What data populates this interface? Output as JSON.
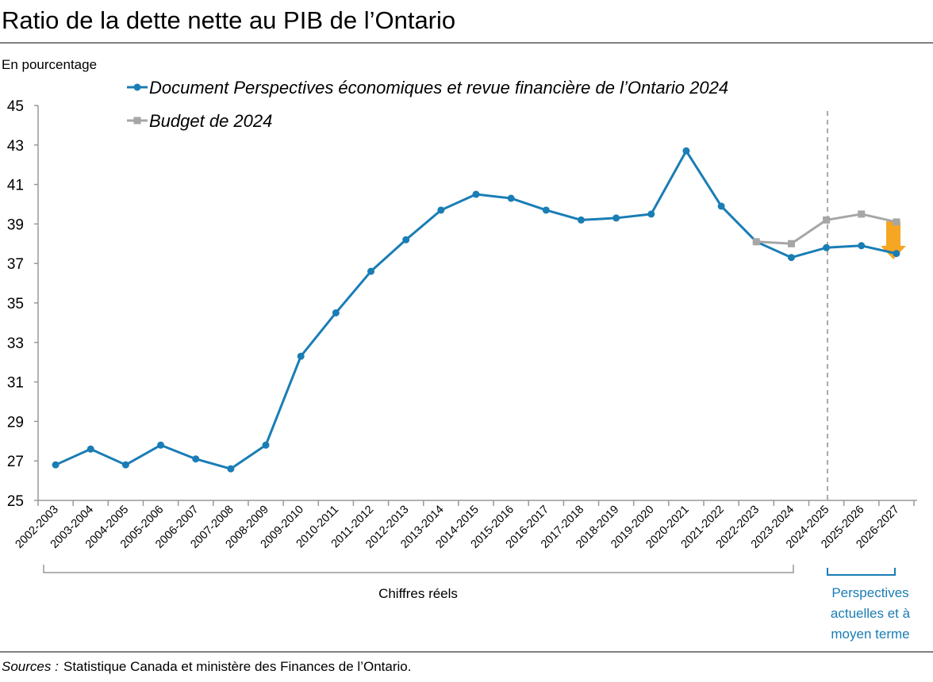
{
  "chart_data": {
    "type": "line",
    "title": "Ratio de la dette nette au PIB de l’Ontario",
    "y_label": "En pourcentage",
    "categories": [
      "2002-2003",
      "2003-2004",
      "2004-2005",
      "2005-2006",
      "2006-2007",
      "2007-2008",
      "2008-2009",
      "2009-2010",
      "2010-2011",
      "2011-2012",
      "2012-2013",
      "2013-2014",
      "2014-2015",
      "2015-2016",
      "2016-2017",
      "2017-2018",
      "2018-2019",
      "2019-2020",
      "2020-2021",
      "2021-2022",
      "2022-2023",
      "2023-2024",
      "2024-2025",
      "2025-2026",
      "2026-2027"
    ],
    "series": [
      {
        "name": "Document Perspectives économiques et revue financière de l’Ontario 2024",
        "color": "#1a7db5",
        "marker": "circle",
        "values": [
          26.8,
          27.6,
          26.8,
          27.8,
          27.1,
          26.6,
          27.8,
          32.3,
          34.5,
          36.6,
          38.2,
          39.7,
          40.5,
          40.3,
          39.7,
          39.2,
          39.3,
          39.5,
          42.7,
          39.9,
          38.1,
          37.3,
          37.8,
          37.9,
          37.5
        ]
      },
      {
        "name": "Budget de 2024",
        "color": "#a6a6a6",
        "marker": "square",
        "values": [
          null,
          null,
          null,
          null,
          null,
          null,
          null,
          null,
          null,
          null,
          null,
          null,
          null,
          null,
          null,
          null,
          null,
          null,
          null,
          null,
          38.1,
          38.0,
          39.2,
          39.5,
          39.1
        ]
      }
    ],
    "ylim": [
      25,
      45
    ],
    "yticks": [
      25,
      27,
      29,
      31,
      33,
      35,
      37,
      39,
      41,
      43,
      45
    ],
    "grid": false,
    "legend": "top-left",
    "annotations": {
      "actual": "Chiffres réels",
      "outlook": [
        "Perspectives",
        "actuelles et à",
        "moyen terme"
      ]
    },
    "source_label": "Sources :",
    "source": "Statistique Canada et ministère des Finances de l’Ontario."
  }
}
